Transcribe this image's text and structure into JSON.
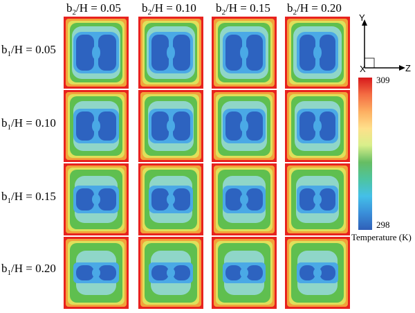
{
  "columns": [
    {
      "prefix": "b",
      "sub": "2",
      "suffix": "/H = 0.05"
    },
    {
      "prefix": "b",
      "sub": "2",
      "suffix": "/H = 0.10"
    },
    {
      "prefix": "b",
      "sub": "2",
      "suffix": "/H = 0.15"
    },
    {
      "prefix": "b",
      "sub": "2",
      "suffix": "/H = 0.20"
    }
  ],
  "rows": [
    {
      "prefix": "b",
      "sub": "1",
      "suffix": "/H = 0.05"
    },
    {
      "prefix": "b",
      "sub": "1",
      "suffix": "/H = 0.10"
    },
    {
      "prefix": "b",
      "sub": "1",
      "suffix": "/H = 0.15"
    },
    {
      "prefix": "b",
      "sub": "1",
      "suffix": "/H = 0.20"
    }
  ],
  "axes": {
    "y": "Y",
    "x": "X",
    "z": "Z"
  },
  "colorbar": {
    "max": "309",
    "min": "298",
    "title": "Temperature (K)",
    "colors": [
      "#d7191c",
      "#f46d43",
      "#fdae61",
      "#fee08b",
      "#d9ef8b",
      "#66bd63",
      "#4dc4a0",
      "#44c0e8",
      "#3a8fd9",
      "#2f5fb8"
    ]
  },
  "field_colors": {
    "wall": "#e8221e",
    "hot": "#f2a23a",
    "warm": "#dfe05a",
    "mild": "#5fbf4f",
    "cool": "#8fd6c8",
    "cold_light": "#4aa9e6",
    "cold": "#2d63c0"
  }
}
